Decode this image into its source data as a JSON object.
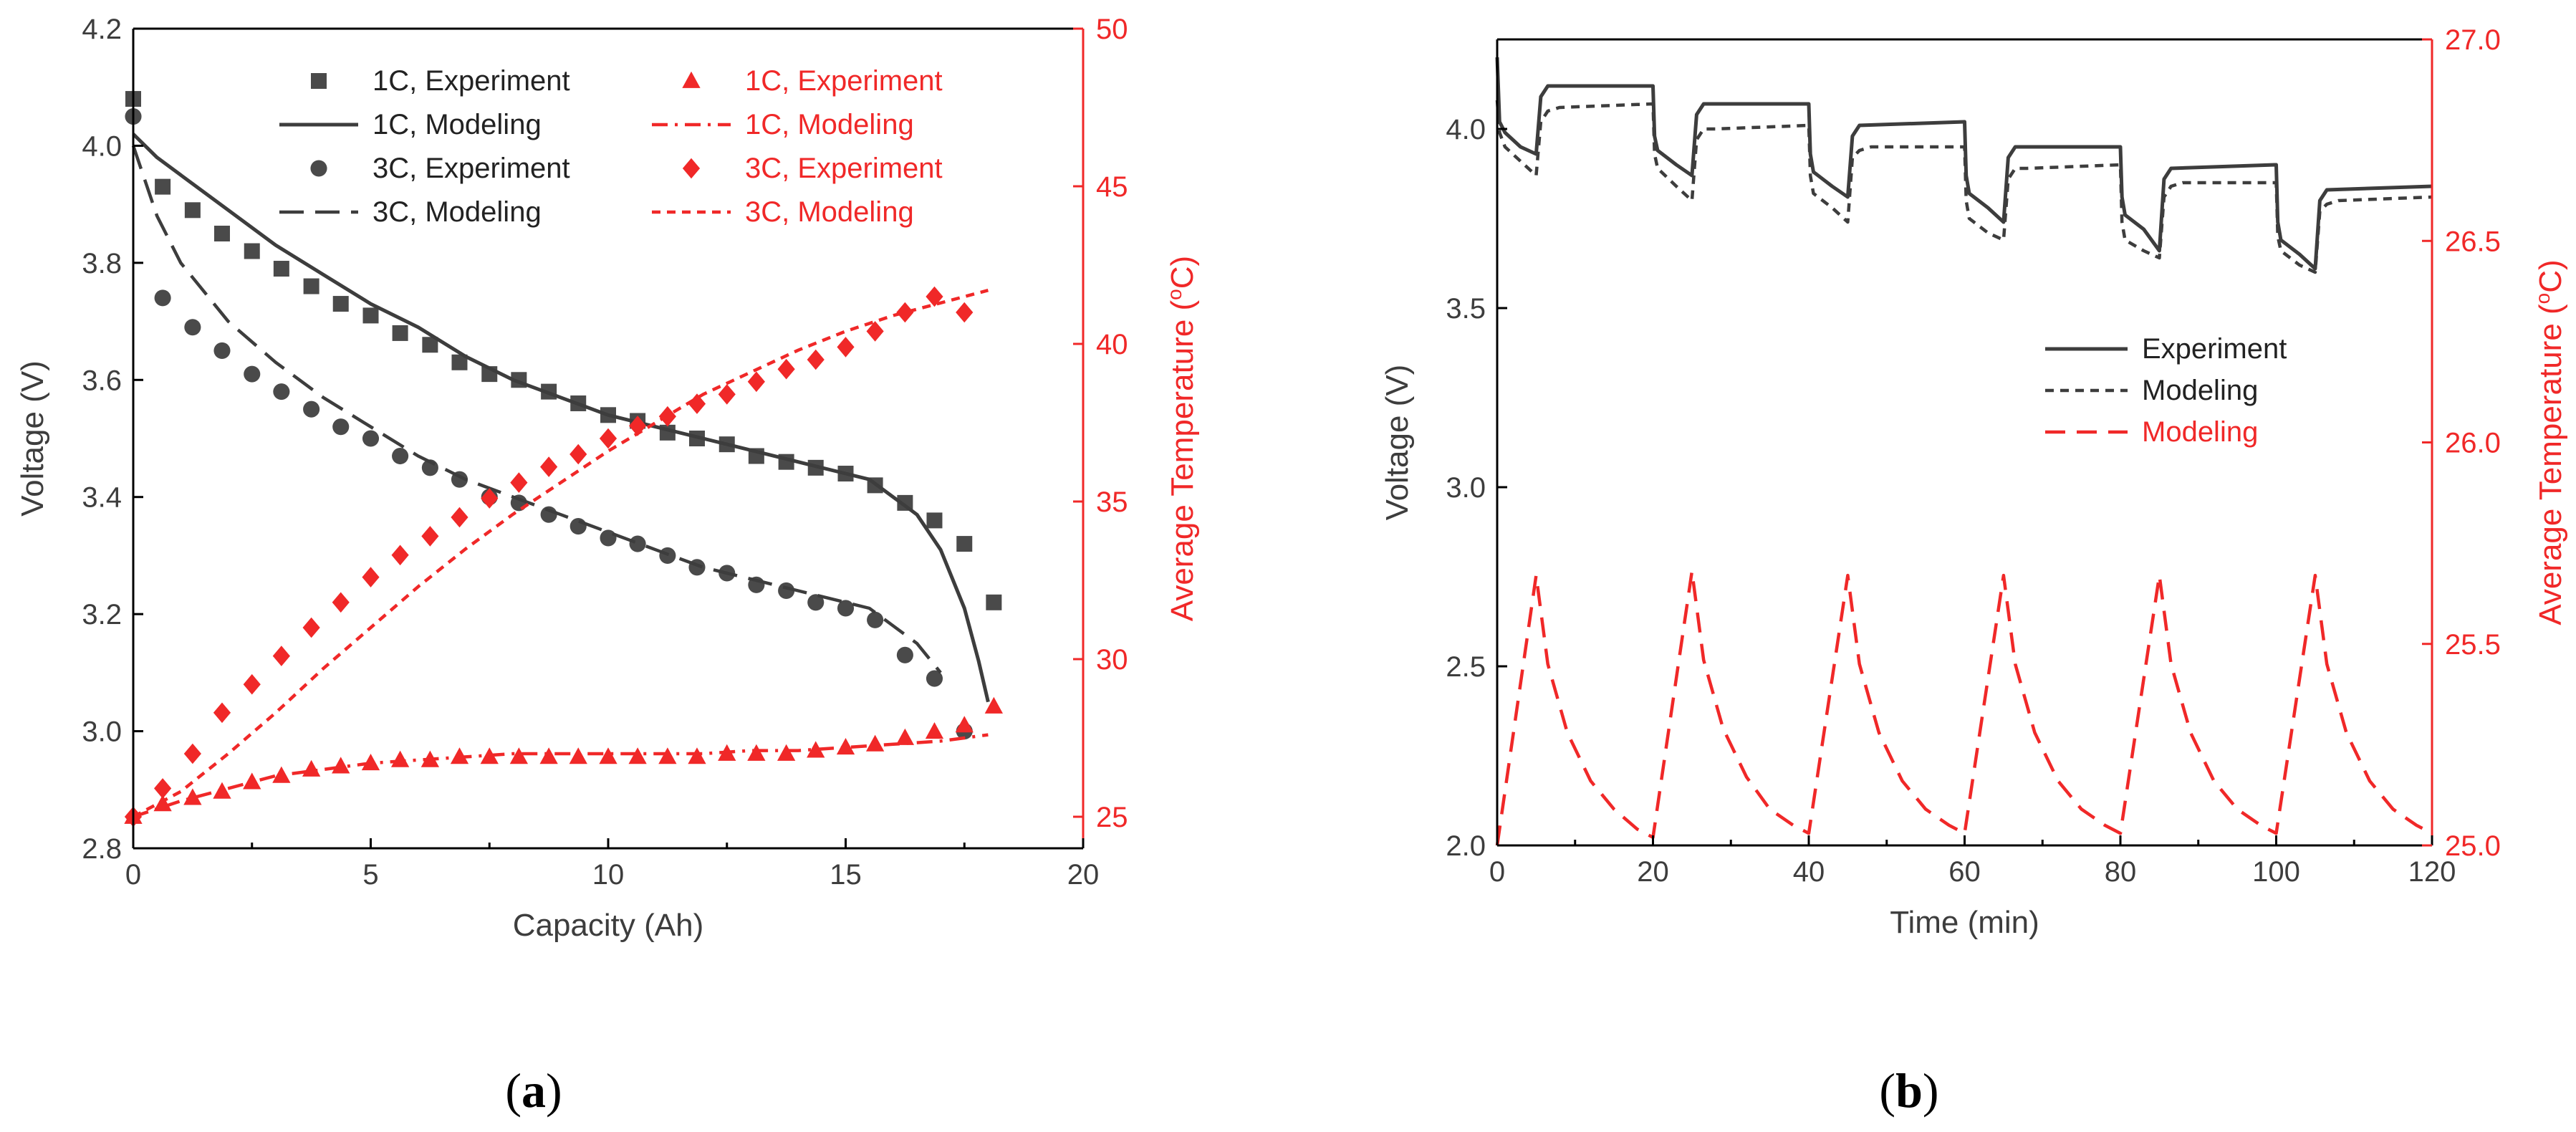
{
  "colors": {
    "experiment_dark": "#4a4a4a",
    "modeling_dark": "#3d3d3d",
    "temperature_red": "#f02828",
    "axis_black": "#000000",
    "axis_red": "#f02828"
  },
  "captions": {
    "a_open": "(",
    "a_letter": "a",
    "a_close": ")",
    "b_open": "(",
    "b_letter": "b",
    "b_close": ")"
  },
  "chart_data": [
    {
      "id": "a",
      "type": "line",
      "title": "",
      "xlabel": "Capacity (Ah)",
      "ylabel": "Voltage (V)",
      "y2label_prefix": "Average Temperature (",
      "y2label_degree": "o",
      "y2label_suffix": "C)",
      "xlim": [
        0,
        20
      ],
      "ylim": [
        2.8,
        4.2
      ],
      "y2lim": [
        24,
        50
      ],
      "xticks": [
        0,
        5,
        10,
        15,
        20
      ],
      "xtick_labels": [
        "0",
        "5",
        "10",
        "15",
        "20"
      ],
      "yticks": [
        2.8,
        3.0,
        3.2,
        3.4,
        3.6,
        3.8,
        4.0,
        4.2
      ],
      "ytick_labels": [
        "2.8",
        "3.0",
        "3.2",
        "3.4",
        "3.6",
        "3.8",
        "4.0",
        "4.2"
      ],
      "y2ticks": [
        25,
        30,
        35,
        40,
        45,
        50
      ],
      "y2tick_labels": [
        "25",
        "30",
        "35",
        "40",
        "45",
        "50"
      ],
      "legend_position": "top",
      "series": [
        {
          "name": "1C, Experiment",
          "axis": "left",
          "style": "square",
          "color": "#4a4a4a",
          "x": [
            0,
            0.62,
            1.25,
            1.87,
            2.5,
            3.12,
            3.75,
            4.37,
            5.0,
            5.62,
            6.25,
            6.87,
            7.5,
            8.12,
            8.75,
            9.37,
            10.0,
            10.62,
            11.25,
            11.87,
            12.5,
            13.12,
            13.75,
            14.37,
            15.0,
            15.62,
            16.25,
            16.87,
            17.5,
            18.12
          ],
          "y": [
            4.08,
            3.93,
            3.89,
            3.85,
            3.82,
            3.79,
            3.76,
            3.73,
            3.71,
            3.68,
            3.66,
            3.63,
            3.61,
            3.6,
            3.58,
            3.56,
            3.54,
            3.53,
            3.51,
            3.5,
            3.49,
            3.47,
            3.46,
            3.45,
            3.44,
            3.42,
            3.39,
            3.36,
            3.32,
            3.22
          ]
        },
        {
          "name": "1C, Modeling",
          "axis": "left",
          "style": "solid",
          "color": "#3d3d3d",
          "x": [
            0,
            0.5,
            1,
            2,
            3,
            4,
            5,
            6,
            7,
            8,
            9,
            10,
            11,
            12,
            13,
            14,
            15,
            15.5,
            16,
            16.5,
            17,
            17.5,
            17.8,
            18.0
          ],
          "y": [
            4.02,
            3.98,
            3.95,
            3.89,
            3.83,
            3.78,
            3.73,
            3.69,
            3.64,
            3.6,
            3.57,
            3.54,
            3.52,
            3.5,
            3.48,
            3.46,
            3.44,
            3.43,
            3.4,
            3.37,
            3.31,
            3.21,
            3.12,
            3.05
          ]
        },
        {
          "name": "3C, Experiment",
          "axis": "left",
          "style": "circle",
          "color": "#4a4a4a",
          "x": [
            0,
            0.62,
            1.25,
            1.87,
            2.5,
            3.12,
            3.75,
            4.37,
            5.0,
            5.62,
            6.25,
            6.87,
            7.5,
            8.12,
            8.75,
            9.37,
            10.0,
            10.62,
            11.25,
            11.87,
            12.5,
            13.12,
            13.75,
            14.37,
            15.0,
            15.62,
            16.25,
            16.87,
            17.5
          ],
          "y": [
            4.05,
            3.74,
            3.69,
            3.65,
            3.61,
            3.58,
            3.55,
            3.52,
            3.5,
            3.47,
            3.45,
            3.43,
            3.4,
            3.39,
            3.37,
            3.35,
            3.33,
            3.32,
            3.3,
            3.28,
            3.27,
            3.25,
            3.24,
            3.22,
            3.21,
            3.19,
            3.13,
            3.09,
            3.0
          ]
        },
        {
          "name": "3C, Modeling",
          "axis": "left",
          "style": "dash",
          "color": "#3d3d3d",
          "x": [
            0,
            0.5,
            1,
            2,
            3,
            4,
            5,
            6,
            7,
            8,
            9,
            10,
            11,
            12,
            13,
            14,
            15,
            15.5,
            16,
            16.5,
            17.0
          ],
          "y": [
            4.0,
            3.88,
            3.8,
            3.7,
            3.63,
            3.57,
            3.52,
            3.47,
            3.43,
            3.4,
            3.37,
            3.34,
            3.31,
            3.28,
            3.26,
            3.24,
            3.22,
            3.21,
            3.18,
            3.15,
            3.1
          ]
        },
        {
          "name": "1C, Experiment",
          "axis": "right",
          "style": "triangle",
          "color": "#f02828",
          "x": [
            0,
            0.62,
            1.25,
            1.87,
            2.5,
            3.12,
            3.75,
            4.37,
            5.0,
            5.62,
            6.25,
            6.87,
            7.5,
            8.12,
            8.75,
            9.37,
            10.0,
            10.62,
            11.25,
            11.87,
            12.5,
            13.12,
            13.75,
            14.37,
            15.0,
            15.62,
            16.25,
            16.87,
            17.5,
            18.12
          ],
          "y": [
            25.0,
            25.4,
            25.6,
            25.8,
            26.1,
            26.3,
            26.5,
            26.6,
            26.7,
            26.8,
            26.8,
            26.9,
            26.9,
            26.9,
            26.9,
            26.9,
            26.9,
            26.9,
            26.9,
            26.9,
            27.0,
            27.0,
            27.0,
            27.1,
            27.2,
            27.3,
            27.5,
            27.7,
            27.9,
            28.5
          ]
        },
        {
          "name": "1C, Modeling",
          "axis": "right",
          "style": "dashdot",
          "color": "#f02828",
          "x": [
            0,
            1,
            2,
            3,
            4,
            5,
            6,
            7,
            8,
            9,
            10,
            11,
            12,
            13,
            14,
            15,
            16,
            17,
            18.0
          ],
          "y": [
            25.0,
            25.5,
            25.9,
            26.3,
            26.5,
            26.7,
            26.8,
            26.9,
            27.0,
            27.0,
            27.0,
            27.0,
            27.0,
            27.1,
            27.1,
            27.2,
            27.3,
            27.4,
            27.6
          ]
        },
        {
          "name": "3C, Experiment",
          "axis": "right",
          "style": "diamond",
          "color": "#f02828",
          "x": [
            0,
            0.62,
            1.25,
            1.87,
            2.5,
            3.12,
            3.75,
            4.37,
            5.0,
            5.62,
            6.25,
            6.87,
            7.5,
            8.12,
            8.75,
            9.37,
            10.0,
            10.62,
            11.25,
            11.87,
            12.5,
            13.12,
            13.75,
            14.37,
            15.0,
            15.62,
            16.25,
            16.87,
            17.5
          ],
          "y": [
            25.0,
            25.9,
            27.0,
            28.3,
            29.2,
            30.1,
            31.0,
            31.8,
            32.6,
            33.3,
            33.9,
            34.5,
            35.1,
            35.6,
            36.1,
            36.5,
            37.0,
            37.4,
            37.7,
            38.1,
            38.4,
            38.8,
            39.2,
            39.5,
            39.9,
            40.4,
            41.0,
            41.5,
            41.0
          ]
        },
        {
          "name": "3C, Modeling",
          "axis": "right",
          "style": "shortdash",
          "color": "#f02828",
          "x": [
            0,
            1,
            2,
            3,
            4,
            5,
            6,
            7,
            8,
            9,
            10,
            11,
            12,
            13,
            14,
            15,
            16,
            17,
            18.0
          ],
          "y": [
            25.0,
            25.8,
            27.0,
            28.3,
            29.7,
            31.0,
            32.3,
            33.5,
            34.6,
            35.6,
            36.6,
            37.5,
            38.4,
            39.1,
            39.8,
            40.4,
            40.9,
            41.3,
            41.7
          ]
        }
      ],
      "legend": [
        {
          "label": "1C, Experiment",
          "style": "square",
          "color": "#4a4a4a"
        },
        {
          "label": "1C, Modeling",
          "style": "solid",
          "color": "#3d3d3d"
        },
        {
          "label": "3C, Experiment",
          "style": "circle",
          "color": "#4a4a4a"
        },
        {
          "label": "3C, Modeling",
          "style": "dash",
          "color": "#3d3d3d"
        },
        {
          "label": "1C, Experiment",
          "style": "triangle",
          "color": "#f02828"
        },
        {
          "label": "1C, Modeling",
          "style": "dashdot",
          "color": "#f02828"
        },
        {
          "label": "3C, Experiment",
          "style": "diamond",
          "color": "#f02828"
        },
        {
          "label": "3C, Modeling",
          "style": "shortdash",
          "color": "#f02828"
        }
      ]
    },
    {
      "id": "b",
      "type": "line",
      "title": "",
      "xlabel": "Time (min)",
      "ylabel": "Voltage (V)",
      "y2label_prefix": "Average Temperature (",
      "y2label_degree": "o",
      "y2label_suffix": "C)",
      "xlim": [
        0,
        120
      ],
      "ylim": [
        2.0,
        4.25
      ],
      "y2lim": [
        25.0,
        27.0
      ],
      "xticks": [
        0,
        20,
        40,
        60,
        80,
        100,
        120
      ],
      "xtick_labels": [
        "0",
        "20",
        "40",
        "60",
        "80",
        "100",
        "120"
      ],
      "yticks": [
        2.0,
        2.5,
        3.0,
        3.5,
        4.0
      ],
      "ytick_labels": [
        "2.0",
        "2.5",
        "3.0",
        "3.5",
        "4.0"
      ],
      "y2ticks": [
        25.0,
        25.5,
        26.0,
        26.5,
        27.0
      ],
      "y2tick_labels": [
        "25.0",
        "25.5",
        "26.0",
        "26.5",
        "27.0"
      ],
      "legend_position": "center-right",
      "series": [
        {
          "name": "Experiment",
          "axis": "left",
          "style": "solid",
          "color": "#3d3d3d",
          "x": [
            0,
            0.3,
            1,
            3,
            5,
            5.6,
            6.5,
            20,
            20.2,
            20.6,
            23,
            25,
            25.6,
            26.5,
            40,
            40.2,
            40.6,
            43,
            45,
            45.6,
            46.5,
            60,
            60.2,
            60.6,
            63,
            65,
            65.6,
            66.5,
            80,
            80.2,
            80.6,
            83,
            85,
            85.6,
            86.5,
            100,
            100.2,
            100.6,
            103,
            105,
            105.6,
            106.5,
            120
          ],
          "y": [
            4.2,
            4.02,
            3.99,
            3.95,
            3.93,
            4.09,
            4.12,
            4.12,
            3.98,
            3.94,
            3.9,
            3.87,
            4.04,
            4.07,
            4.07,
            3.93,
            3.88,
            3.84,
            3.81,
            3.98,
            4.01,
            4.02,
            3.87,
            3.82,
            3.78,
            3.74,
            3.92,
            3.95,
            3.95,
            3.81,
            3.76,
            3.72,
            3.66,
            3.86,
            3.89,
            3.9,
            3.74,
            3.69,
            3.65,
            3.61,
            3.8,
            3.83,
            3.84
          ]
        },
        {
          "name": "Modeling",
          "axis": "left",
          "style": "shortdash",
          "color": "#3d3d3d",
          "x": [
            0,
            0.3,
            1,
            3,
            5,
            5.6,
            6.5,
            8,
            20,
            20.2,
            20.6,
            23,
            25,
            25.6,
            26.5,
            28,
            40,
            40.2,
            40.6,
            43,
            45,
            45.6,
            46.5,
            48,
            60,
            60.2,
            60.6,
            63,
            65,
            65.6,
            66.5,
            68,
            80,
            80.2,
            80.6,
            83,
            85,
            85.6,
            86.5,
            88,
            100,
            100.2,
            100.6,
            103,
            105,
            105.6,
            106.5,
            108,
            120
          ],
          "y": [
            4.08,
            3.99,
            3.95,
            3.91,
            3.87,
            4.02,
            4.05,
            4.06,
            4.07,
            3.93,
            3.89,
            3.84,
            3.8,
            3.97,
            4.0,
            4.0,
            4.01,
            3.87,
            3.82,
            3.78,
            3.74,
            3.92,
            3.94,
            3.95,
            3.95,
            3.8,
            3.75,
            3.71,
            3.69,
            3.86,
            3.89,
            3.89,
            3.9,
            3.74,
            3.69,
            3.66,
            3.64,
            3.81,
            3.84,
            3.85,
            3.85,
            3.7,
            3.66,
            3.62,
            3.6,
            3.77,
            3.79,
            3.8,
            3.81
          ]
        },
        {
          "name": "Modeling",
          "axis": "right",
          "style": "longdash",
          "color": "#f02828",
          "x": [
            0,
            5,
            6.5,
            9,
            12,
            15,
            18,
            20,
            25,
            26.5,
            29,
            32,
            35,
            38,
            40,
            45,
            46.5,
            49,
            52,
            55,
            58,
            60,
            65,
            66.5,
            69,
            72,
            75,
            78,
            80,
            85,
            86.5,
            89,
            92,
            95,
            98,
            100,
            105,
            106.5,
            109,
            112,
            115,
            118,
            120
          ],
          "y": [
            25.0,
            25.67,
            25.45,
            25.28,
            25.16,
            25.09,
            25.04,
            25.02,
            25.68,
            25.46,
            25.29,
            25.17,
            25.09,
            25.05,
            25.03,
            25.67,
            25.45,
            25.28,
            25.16,
            25.09,
            25.05,
            25.03,
            25.67,
            25.45,
            25.28,
            25.16,
            25.09,
            25.05,
            25.03,
            25.67,
            25.45,
            25.28,
            25.16,
            25.09,
            25.05,
            25.03,
            25.67,
            25.45,
            25.28,
            25.16,
            25.09,
            25.05,
            25.03
          ]
        }
      ],
      "legend": [
        {
          "label": "Experiment",
          "style": "solid",
          "color": "#3d3d3d"
        },
        {
          "label": "Modeling",
          "style": "shortdash",
          "color": "#3d3d3d"
        },
        {
          "label": "Modeling",
          "style": "longdash",
          "color": "#f02828"
        }
      ]
    }
  ]
}
